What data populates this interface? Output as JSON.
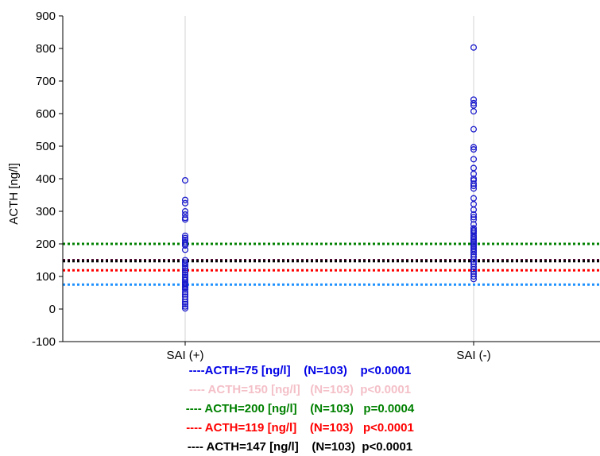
{
  "chart_data": {
    "type": "scatter",
    "ylabel": "ACTH [ng/l]",
    "xlabel": "",
    "categories": [
      "SAI (+)",
      "SAI (-)"
    ],
    "ylim": [
      -100,
      900
    ],
    "yticks": [
      -100,
      0,
      100,
      200,
      300,
      400,
      500,
      600,
      700,
      800,
      900
    ],
    "grid": "vertical",
    "marker_color": "#1a1acc",
    "series": [
      {
        "category": "SAI (+)",
        "values": [
          395,
          335,
          325,
          300,
          290,
          280,
          275,
          225,
          218,
          212,
          205,
          200,
          195,
          182,
          150,
          143,
          138,
          132,
          125,
          118,
          112,
          105,
          98,
          92,
          88,
          82,
          78,
          75,
          70,
          65,
          60,
          52,
          45,
          38,
          30,
          22,
          15,
          8,
          2
        ]
      },
      {
        "category": "SAI (-)",
        "values": [
          803,
          643,
          632,
          625,
          607,
          552,
          497,
          490,
          460,
          433,
          415,
          400,
          395,
          385,
          378,
          370,
          340,
          322,
          305,
          290,
          282,
          275,
          260,
          248,
          242,
          238,
          232,
          225,
          220,
          215,
          210,
          205,
          200,
          195,
          190,
          185,
          180,
          175,
          168,
          160,
          152,
          145,
          138,
          130,
          122,
          115,
          108,
          100,
          92
        ]
      }
    ],
    "thresholds": [
      {
        "value": 75,
        "color": "#1e90ff"
      },
      {
        "value": 150,
        "color": "#5a0a3a"
      },
      {
        "value": 200,
        "color": "#008000"
      },
      {
        "value": 119,
        "color": "#ff0000"
      },
      {
        "value": 147,
        "color": "#000000"
      }
    ],
    "legend": [
      {
        "text": "----ACTH=75 [ng/l]    (N=103)    p<0.0001",
        "color": "#0000e6"
      },
      {
        "text": "---- ACTH=150 [ng/l]   (N=103)  p<0.0001",
        "color": "#f4c0c8"
      },
      {
        "text": "---- ACTH=200 [ng/l]    (N=103)   p=0.0004",
        "color": "#008000"
      },
      {
        "text": "---- ACTH=119 [ng/l]    (N=103)   p<0.0001",
        "color": "#ff0000"
      },
      {
        "text": "---- ACTH=147 [ng/l]    (N=103)  p<0.0001",
        "color": "#000000"
      }
    ]
  }
}
